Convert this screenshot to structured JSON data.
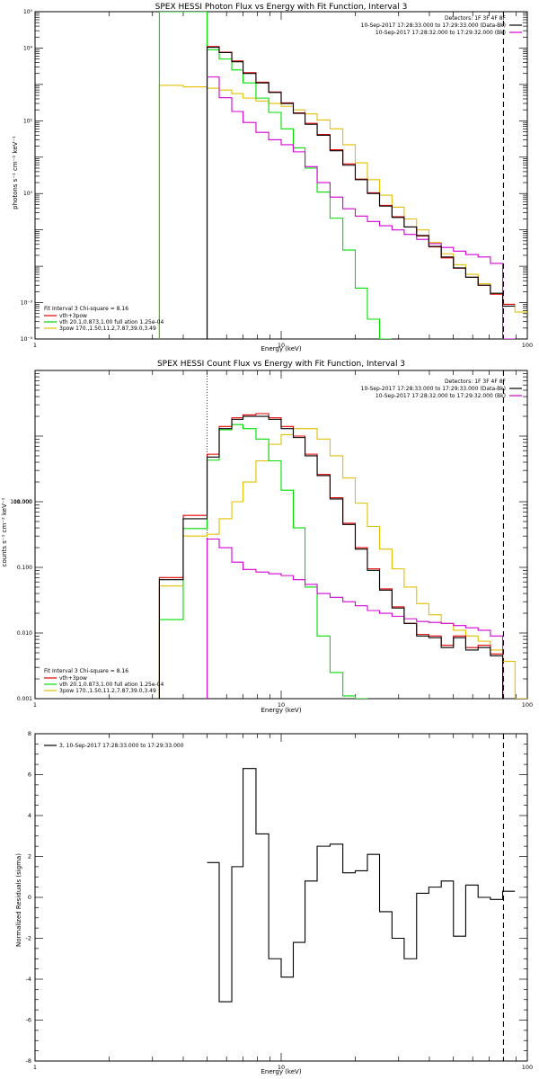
{
  "chart_data": [
    {
      "type": "line",
      "title": "SPEX HESSI Photon Flux vs Energy with Fit Function, Interval 3",
      "xlabel": "Energy (keV)",
      "ylabel": "photons s⁻¹ cm⁻² keV⁻¹",
      "x_scale": "log",
      "y_scale": "log",
      "xlim": [
        1,
        100
      ],
      "ylim": [
        0.0001,
        100000
      ],
      "x_tick_labels": [
        "1",
        "10",
        "100"
      ],
      "y_tick_labels": [
        "10⁻⁴",
        "10⁻³",
        "10⁰",
        "10²",
        "10⁴",
        "10⁵"
      ],
      "header_lines": [
        "Detectors: 1F 3F 4F 8F",
        "10-Sep-2017 17:28:33.000 to 17:29:33.000 (Data-Bk)",
        "10-Sep-2017 17:28:32.000 to 17:29:32.000 (Bk)"
      ],
      "legend": {
        "header": "Fit Interval 3   Chi-square = 8.16",
        "entries": [
          {
            "label": "vth+3pow",
            "color": "#e00000"
          },
          {
            "label": "vth 20.1,0.873,1.00  full ation 1.25e-04",
            "color": "#00dd00"
          },
          {
            "label": "3pow 170.,1.50,11.2,7.87,39.0,3.49",
            "color": "#e0c000"
          }
        ]
      },
      "vlines": [
        {
          "x": 5,
          "style": "dotted"
        },
        {
          "x": 80,
          "style": "dashed"
        }
      ],
      "series": [
        {
          "name": "Data-Bk",
          "color": "#000000",
          "style": "step",
          "x": [
            5,
            5.6,
            6.3,
            7,
            7.9,
            8.9,
            10,
            11.2,
            12.5,
            14,
            15.8,
            17.8,
            20,
            22.4,
            25.1,
            28.2,
            31.6,
            35.5,
            39.8,
            44.7,
            50.1,
            56.2,
            63.1,
            70.8,
            79.4
          ],
          "y": [
            10500,
            7500,
            4200,
            2000,
            1100,
            600,
            300,
            160,
            80,
            40,
            15,
            6,
            2.4,
            1.0,
            0.45,
            0.22,
            0.12,
            0.07,
            0.035,
            0.018,
            0.009,
            0.005,
            0.003,
            0.0018,
            0.0008
          ]
        },
        {
          "name": "vth+3pow",
          "color": "#e00000",
          "style": "step",
          "x": [
            5,
            5.6,
            6.3,
            7,
            7.9,
            8.9,
            10,
            11.2,
            12.5,
            14,
            15.8,
            17.8,
            20,
            22.4,
            25.1,
            28.2,
            31.6,
            35.5,
            39.8,
            44.7,
            50.1,
            56.2,
            63.1,
            70.8,
            79.4
          ],
          "y": [
            11000,
            7700,
            4400,
            2100,
            1150,
            620,
            310,
            165,
            85,
            42,
            16,
            6.5,
            2.5,
            1.05,
            0.47,
            0.23,
            0.12,
            0.068,
            0.034,
            0.017,
            0.0088,
            0.005,
            0.003,
            0.0017,
            0.0009
          ]
        },
        {
          "name": "vth",
          "color": "#00dd00",
          "style": "step",
          "x": [
            3.2,
            5,
            5.6,
            6.3,
            7,
            7.9,
            8.9,
            10,
            11.2,
            12.5,
            14,
            15.8,
            17.8,
            20,
            22.4,
            25.1
          ],
          "y": [
            100000,
            9000,
            5000,
            2500,
            1100,
            420,
            170,
            60,
            18,
            5,
            1.1,
            0.21,
            0.028,
            0.0025,
            0.00035,
            9e-05
          ]
        },
        {
          "name": "3pow",
          "color": "#e0c000",
          "style": "step",
          "x": [
            3.2,
            4,
            5,
            5.6,
            6.3,
            7,
            7.9,
            8.9,
            10,
            11.2,
            12.5,
            14,
            15.8,
            17.8,
            20,
            22.4,
            25.1,
            28.2,
            31.6,
            35.5,
            39.8,
            44.7,
            50.1,
            56.2,
            63.1,
            70.8,
            79.4,
            89.1
          ],
          "y": [
            940,
            860,
            790,
            700,
            560,
            420,
            350,
            300,
            250,
            200,
            155,
            105,
            60,
            22,
            7,
            2.4,
            0.9,
            0.42,
            0.2,
            0.1,
            0.045,
            0.022,
            0.011,
            0.006,
            0.0033,
            0.0018,
            0.0009,
            0.00055
          ]
        },
        {
          "name": "Bk",
          "color": "#d400d4",
          "style": "step",
          "x": [
            5,
            5.6,
            6.3,
            7,
            7.9,
            8.9,
            10,
            11.2,
            12.5,
            14,
            15.8,
            17.8,
            20,
            22.4,
            25.1,
            28.2,
            31.6,
            35.5,
            39.8,
            44.7,
            50.1,
            56.2,
            63.1,
            70.8,
            79.4
          ],
          "y": [
            1600,
            430,
            180,
            90,
            48,
            30,
            22,
            14,
            5.5,
            2.0,
            0.8,
            0.38,
            0.24,
            0.17,
            0.13,
            0.1,
            0.075,
            0.055,
            0.042,
            0.033,
            0.026,
            0.021,
            0.018,
            0.012,
            0.0001
          ]
        }
      ]
    },
    {
      "type": "line",
      "title": "SPEX HESSI Count Flux vs Energy with Fit Function, Interval 3",
      "xlabel": "Energy (keV)",
      "ylabel": "counts s⁻¹ cm⁻² keV⁻¹",
      "x_scale": "log",
      "y_scale": "log",
      "xlim": [
        1,
        100
      ],
      "ylim": [
        0.001,
        100
      ],
      "x_tick_labels": [
        "1",
        "10",
        "100"
      ],
      "y_tick_labels": [
        "100.000",
        "10.000",
        "1.000",
        "0.100",
        "0.010",
        "0.001"
      ],
      "header_lines": [
        "Detectors: 1F 3F 4F 8F",
        "10-Sep-2017 17:28:33.000 to 17:29:33.000 (Data-Bk)",
        "10-Sep-2017 17:28:32.000 to 17:29:32.000 (Bk)"
      ],
      "legend": {
        "header": "Fit Interval 3   Chi-square = 8.16",
        "entries": [
          {
            "label": "vth+3pow",
            "color": "#e00000"
          },
          {
            "label": "vth 20.1,0.873,1.00  full ation 1.25e-04",
            "color": "#00dd00"
          },
          {
            "label": "3pow 170.,1.50,11.2,7.87,39.0,3.49",
            "color": "#e0c000"
          }
        ]
      },
      "vlines": [
        {
          "x": 5,
          "style": "dotted"
        },
        {
          "x": 80,
          "style": "dashed"
        }
      ],
      "series": [
        {
          "name": "Data-Bk",
          "color": "#000000",
          "style": "step",
          "x": [
            3.2,
            4,
            5,
            5.6,
            6.3,
            7,
            7.9,
            8.9,
            10,
            11.2,
            12.5,
            14,
            15.8,
            17.8,
            20,
            22.4,
            25.1,
            28.2,
            31.6,
            35.5,
            39.8,
            44.7,
            50.1,
            56.2,
            63.1,
            70.8,
            79.4
          ],
          "y": [
            0.065,
            0.55,
            4.8,
            13,
            18,
            20,
            20,
            18,
            13,
            9.5,
            5,
            2.5,
            1.1,
            0.45,
            0.19,
            0.09,
            0.045,
            0.024,
            0.014,
            0.009,
            0.0085,
            0.006,
            0.0085,
            0.0055,
            0.006,
            0.0045,
            0.001
          ]
        },
        {
          "name": "vth+3pow",
          "color": "#e00000",
          "style": "step",
          "x": [
            3.2,
            4,
            5,
            5.6,
            6.3,
            7,
            7.9,
            8.9,
            10,
            11.2,
            12.5,
            14,
            15.8,
            17.8,
            20,
            22.4,
            25.1,
            28.2,
            31.6,
            35.5,
            39.8,
            44.7,
            50.1,
            56.2,
            63.1,
            70.8,
            79.4
          ],
          "y": [
            0.07,
            0.62,
            5.3,
            14,
            19,
            21,
            22,
            19,
            14,
            10,
            5.3,
            2.6,
            1.15,
            0.47,
            0.2,
            0.095,
            0.047,
            0.025,
            0.014,
            0.0095,
            0.009,
            0.0065,
            0.009,
            0.006,
            0.0065,
            0.0048,
            0.001
          ]
        },
        {
          "name": "vth",
          "color": "#00dd00",
          "style": "step",
          "x": [
            3.2,
            4,
            5,
            5.6,
            6.3,
            7,
            7.9,
            8.9,
            10,
            11.2,
            12.5,
            14,
            15.8,
            17.8,
            20
          ],
          "y": [
            0.016,
            0.39,
            4.3,
            12.5,
            15,
            13,
            9,
            4.2,
            1.5,
            0.4,
            0.05,
            0.009,
            0.0025,
            0.0011,
            0.001
          ]
        },
        {
          "name": "3pow",
          "color": "#e0c000",
          "style": "step",
          "x": [
            3.2,
            4,
            5,
            5.6,
            6.3,
            7,
            7.9,
            8.9,
            10,
            11.2,
            12.5,
            14,
            15.8,
            17.8,
            20,
            22.4,
            25.1,
            28.2,
            31.6,
            35.5,
            39.8,
            44.7,
            50.1,
            56.2,
            63.1,
            70.8,
            79.4,
            89.1
          ],
          "y": [
            0.052,
            0.3,
            0.32,
            0.55,
            1.0,
            2.0,
            4.2,
            7.5,
            10.5,
            13,
            13,
            9,
            5,
            2.3,
            0.95,
            0.42,
            0.19,
            0.095,
            0.05,
            0.028,
            0.019,
            0.014,
            0.011,
            0.009,
            0.0075,
            0.0055,
            0.0037,
            0.001
          ]
        },
        {
          "name": "Bk",
          "color": "#d400d4",
          "style": "step",
          "x": [
            5,
            5.6,
            6.3,
            7,
            7.9,
            8.9,
            10,
            11.2,
            12.5,
            14,
            15.8,
            17.8,
            20,
            22.4,
            25.1,
            28.2,
            31.6,
            35.5,
            39.8,
            44.7,
            50.1,
            56.2,
            63.1,
            70.8,
            79.4
          ],
          "y": [
            0.27,
            0.2,
            0.12,
            0.093,
            0.085,
            0.08,
            0.075,
            0.065,
            0.055,
            0.04,
            0.035,
            0.03,
            0.026,
            0.022,
            0.02,
            0.018,
            0.0165,
            0.015,
            0.0145,
            0.014,
            0.013,
            0.012,
            0.011,
            0.009,
            0.001
          ]
        }
      ]
    },
    {
      "type": "line",
      "title": "",
      "xlabel": "Energy (keV)",
      "ylabel": "Normalized Residuals (sigma)",
      "x_scale": "log",
      "y_scale": "linear",
      "xlim": [
        1,
        100
      ],
      "ylim": [
        -8,
        8
      ],
      "x_tick_labels": [
        "1",
        "10",
        "100"
      ],
      "y_tick_labels": [
        "8",
        "6",
        "4",
        "2",
        "0",
        "-2",
        "-4",
        "-6",
        "-8"
      ],
      "legend": {
        "entries": [
          {
            "label": "3, 10-Sep-2017 17:28:33.000 to 17:29:33.000",
            "color": "#000000"
          }
        ]
      },
      "vlines": [
        {
          "x": 80,
          "style": "dashed"
        }
      ],
      "series": [
        {
          "name": "3, 10-Sep-2017 17:28:33.000 to 17:29:33.000",
          "color": "#000000",
          "style": "step",
          "x": [
            5,
            5.6,
            6.3,
            7,
            7.9,
            8.9,
            10,
            11.2,
            12.5,
            14,
            15.8,
            17.8,
            20,
            22.4,
            25.1,
            28.2,
            31.6,
            35.5,
            39.8,
            44.7,
            50.1,
            56.2,
            63.1,
            70.8,
            79.4
          ],
          "y": [
            1.7,
            -5.1,
            1.5,
            6.3,
            3.1,
            -3.0,
            -3.9,
            -2.2,
            0.8,
            2.5,
            2.6,
            1.2,
            1.3,
            2.1,
            -0.7,
            -2.0,
            -3.0,
            0.2,
            0.5,
            0.8,
            -1.9,
            0.6,
            0.0,
            -0.1,
            0.3
          ]
        }
      ]
    }
  ]
}
